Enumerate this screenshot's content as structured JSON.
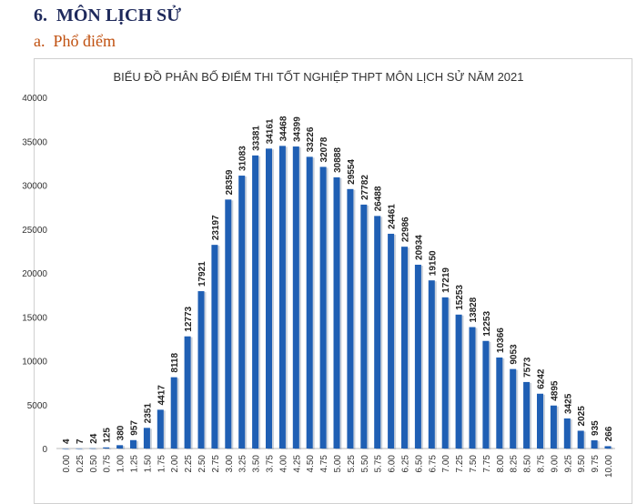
{
  "heading": {
    "number": "6.",
    "title": "MÔN LỊCH SỬ"
  },
  "subheading": {
    "letter": "a.",
    "title": "Phổ điểm"
  },
  "chart_data": {
    "type": "bar",
    "title": "BIỂU ĐỒ PHÂN BỐ ĐIỂM THI TỐT NGHIỆP THPT MÔN LỊCH SỬ NĂM 2021",
    "xlabel": "",
    "ylabel": "",
    "ylim": [
      0,
      40000
    ],
    "yticks": [
      "0",
      "5000",
      "10000",
      "15000",
      "20000",
      "25000",
      "30000",
      "35000",
      "40000"
    ],
    "grid": false,
    "bar_color": "#1f5fb4",
    "categories": [
      "0.00",
      "0.25",
      "0.50",
      "0.75",
      "1.00",
      "1.25",
      "1.50",
      "1.75",
      "2.00",
      "2.25",
      "2.50",
      "2.75",
      "3.00",
      "3.25",
      "3.50",
      "3.75",
      "4.00",
      "4.25",
      "4.50",
      "4.75",
      "5.00",
      "5.25",
      "5.50",
      "5.75",
      "6.00",
      "6.25",
      "6.50",
      "6.75",
      "7.00",
      "7.25",
      "7.50",
      "7.75",
      "8.00",
      "8.25",
      "8.50",
      "8.75",
      "9.00",
      "9.25",
      "9.50",
      "9.75",
      "10.00"
    ],
    "values": [
      4,
      7,
      24,
      125,
      380,
      957,
      2351,
      4417,
      8118,
      12773,
      17921,
      23197,
      28359,
      31083,
      33381,
      34161,
      34468,
      34399,
      33226,
      32078,
      30888,
      29554,
      27782,
      26488,
      24461,
      22986,
      20934,
      19150,
      17219,
      15253,
      13828,
      12253,
      10366,
      9053,
      7573,
      6242,
      4895,
      3425,
      2025,
      935,
      266
    ]
  }
}
